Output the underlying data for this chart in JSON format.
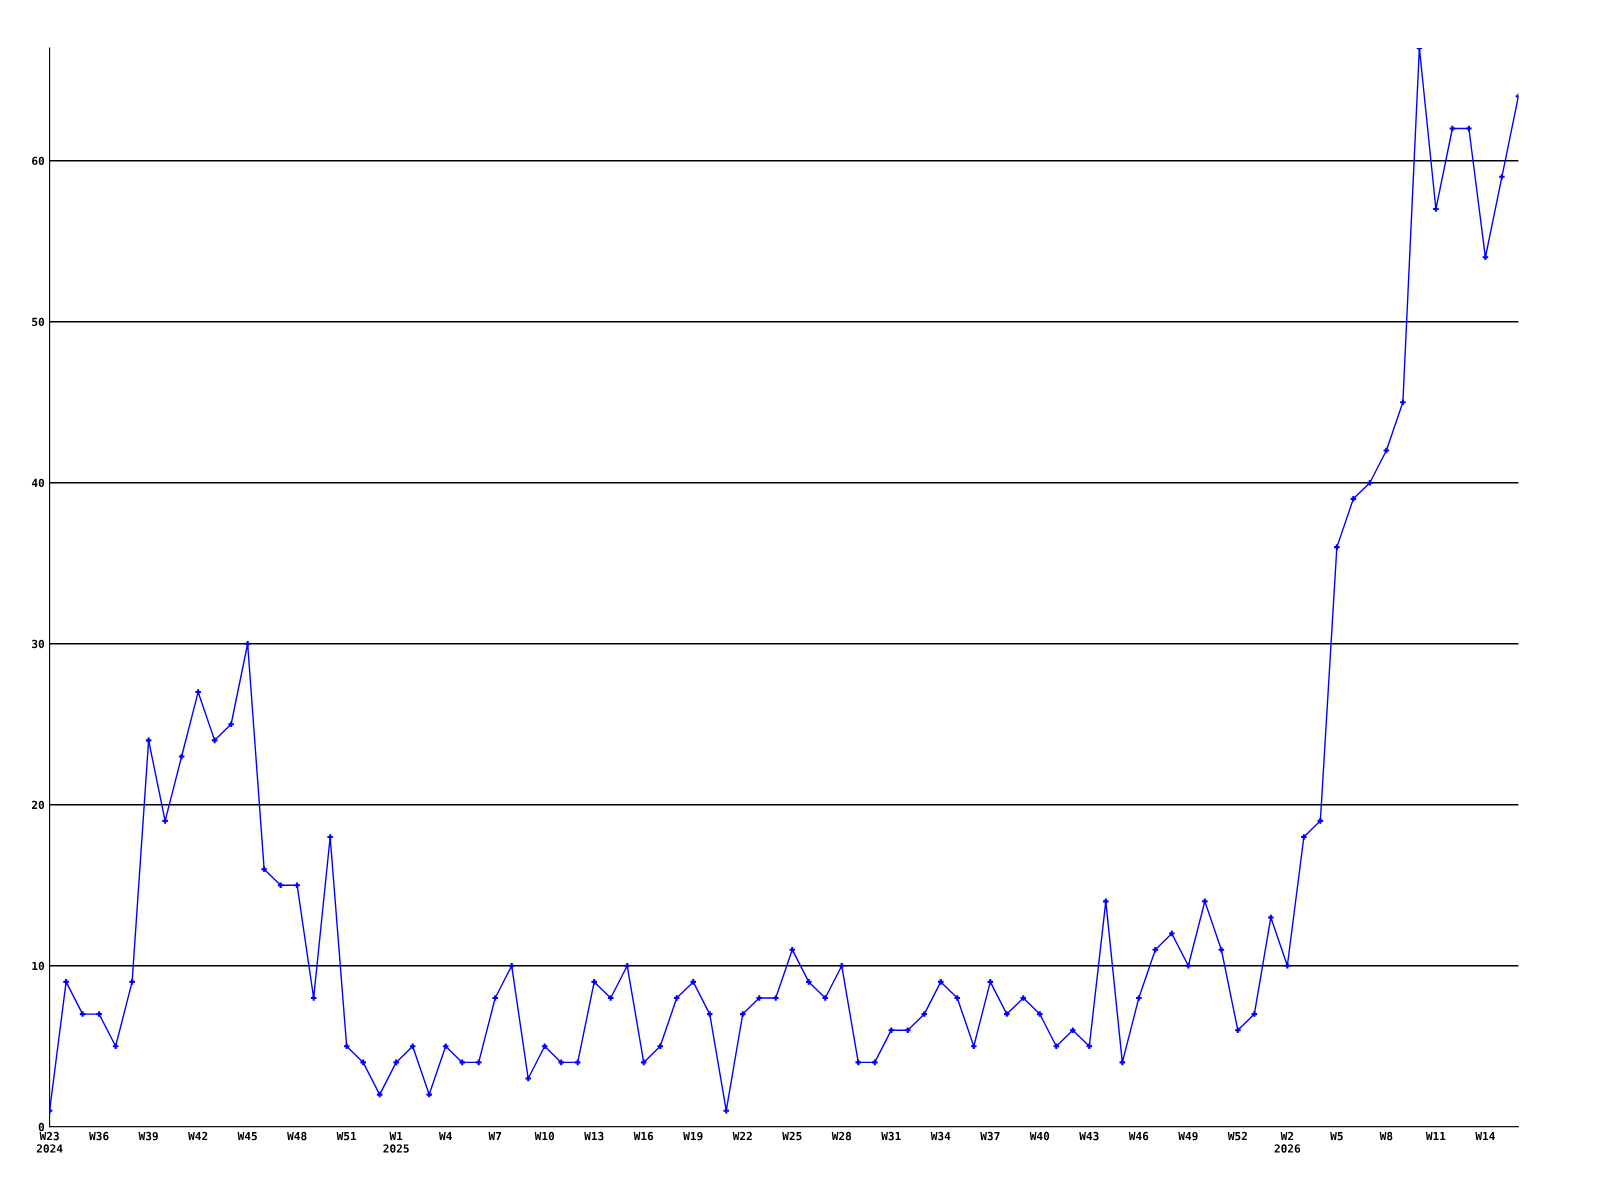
{
  "chart_data": {
    "type": "line",
    "categories": [
      "W23\n2024",
      null,
      null,
      "W36",
      null,
      null,
      "W39",
      null,
      null,
      "W42",
      null,
      null,
      "W45",
      null,
      null,
      "W48",
      null,
      null,
      "W51",
      null,
      null,
      "W1\n2025",
      null,
      null,
      "W4",
      null,
      null,
      "W7",
      null,
      null,
      "W10",
      null,
      null,
      "W13",
      null,
      null,
      "W16",
      null,
      null,
      "W19",
      null,
      null,
      "W22",
      null,
      null,
      "W25",
      null,
      null,
      "W28",
      null,
      null,
      "W31",
      null,
      null,
      "W34",
      null,
      null,
      "W37",
      null,
      null,
      "W40",
      null,
      null,
      "W43",
      null,
      null,
      "W46",
      null,
      null,
      "W49",
      null,
      null,
      "W52",
      null,
      null,
      "W2\n2026",
      null,
      null,
      "W5",
      null,
      null,
      "W8",
      null,
      null,
      "W11",
      null,
      null,
      "W14",
      null,
      null
    ],
    "series": [
      {
        "color": "#0000ff",
        "values": [
          1,
          9,
          7,
          7,
          5,
          9,
          24,
          19,
          23,
          27,
          24,
          25,
          30,
          16,
          15,
          15,
          8,
          18,
          5,
          4,
          2,
          4,
          5,
          2,
          5,
          4,
          4,
          8,
          10,
          3,
          5,
          4,
          4,
          9,
          8,
          10,
          4,
          5,
          8,
          9,
          7,
          1,
          7,
          8,
          8,
          11,
          9,
          8,
          10,
          4,
          4,
          6,
          6,
          7,
          9,
          8,
          5,
          9,
          7,
          8,
          7,
          5,
          6,
          5,
          14,
          4,
          8,
          11,
          12,
          10,
          14,
          11,
          6,
          7,
          13,
          10,
          18,
          19,
          36,
          39,
          40,
          42,
          45,
          67,
          57,
          62,
          62,
          54,
          59,
          64
        ]
      }
    ],
    "ylim": [
      0,
      67
    ],
    "yticks": [
      0,
      10,
      20,
      30,
      40,
      50,
      60
    ],
    "grid": "y",
    "marker": "cross",
    "line_style": "solid"
  }
}
